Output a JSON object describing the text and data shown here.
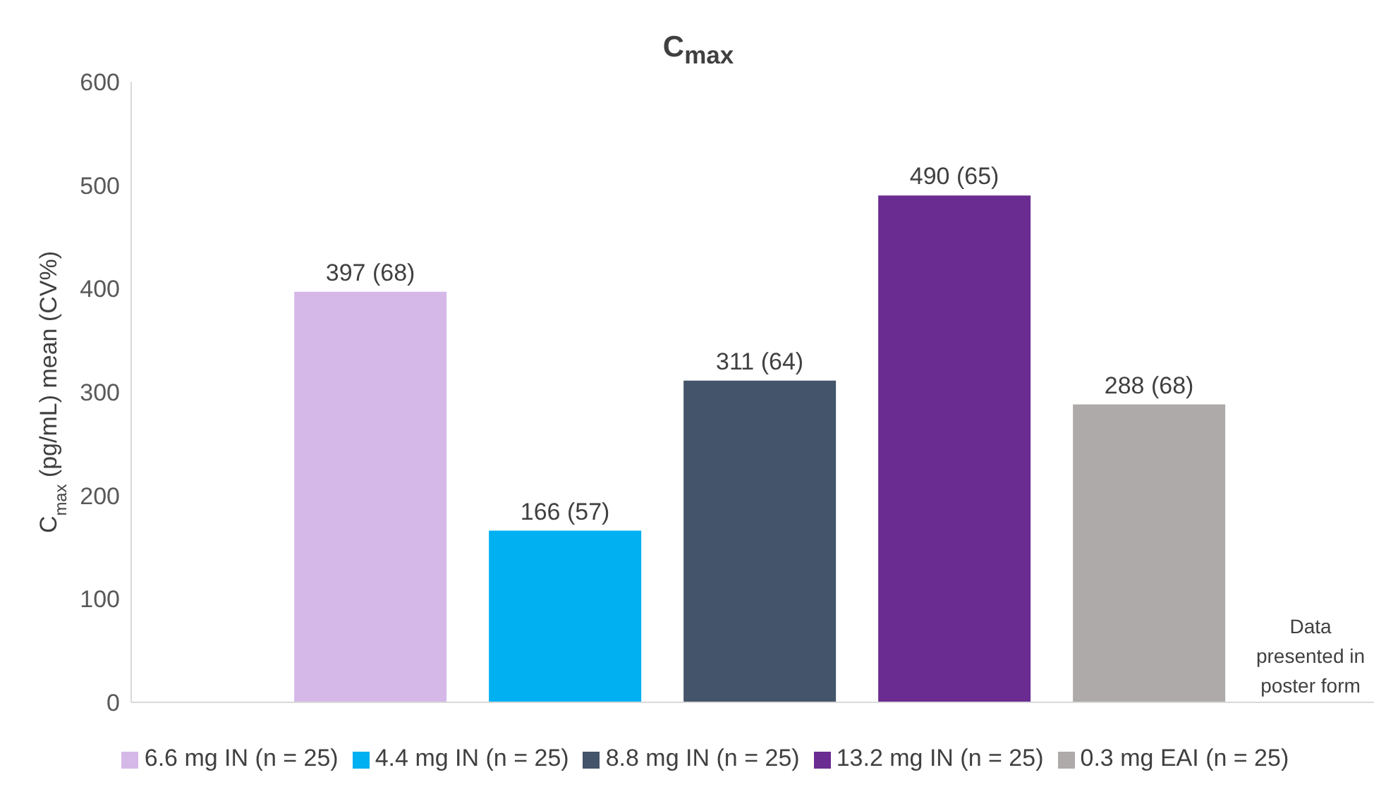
{
  "chart_data": {
    "type": "bar",
    "title": "C$_{max}$",
    "ylabel": "C$_{max}$ (pg/mL) mean (CV%)",
    "categories": [
      null
    ],
    "series": [
      {
        "name": "6.6 mg IN (n = 25)",
        "color": "#d5b8e8",
        "values": [
          397
        ],
        "value_labels": [
          "397 (68)"
        ]
      },
      {
        "name": "4.4 mg IN (n = 25)",
        "color": "#00b0f0",
        "values": [
          166
        ],
        "value_labels": [
          "166 (57)"
        ]
      },
      {
        "name": "8.8 mg IN (n = 25)",
        "color": "#44546a",
        "values": [
          311
        ],
        "value_labels": [
          "311 (64)"
        ]
      },
      {
        "name": "13.2 mg IN (n = 25)",
        "color": "#6b2c91",
        "values": [
          490
        ],
        "value_labels": [
          "490 (65)"
        ]
      },
      {
        "name": "0.3 mg EAI (n = 25)",
        "color": "#aeaaaa",
        "values": [
          288
        ],
        "value_labels": [
          "288 (68)"
        ]
      }
    ],
    "ylim": [
      0,
      600
    ],
    "yticks": [
      0,
      100,
      200,
      300,
      400,
      500,
      600
    ],
    "grid": false,
    "legend": "bottom",
    "annotations": [
      "Data presented in poster form"
    ]
  }
}
